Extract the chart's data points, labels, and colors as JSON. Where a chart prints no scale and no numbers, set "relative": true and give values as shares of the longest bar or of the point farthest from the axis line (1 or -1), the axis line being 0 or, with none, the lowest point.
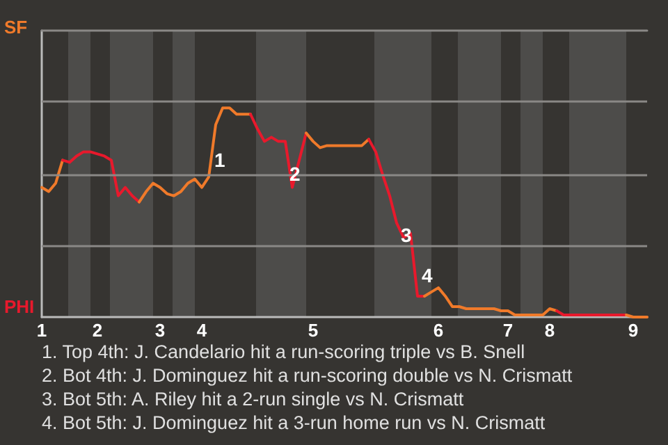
{
  "chart_data": {
    "type": "line",
    "relative": true,
    "categories": [
      "1",
      null,
      null,
      null,
      null,
      null,
      null,
      null,
      "2",
      null,
      null,
      null,
      null,
      null,
      null,
      null,
      null,
      "3",
      null,
      null,
      null,
      null,
      null,
      "4",
      null,
      null,
      null,
      null,
      null,
      null,
      null,
      null,
      null,
      null,
      null,
      null,
      null,
      null,
      null,
      "5",
      null,
      null,
      null,
      null,
      null,
      null,
      null,
      null,
      null,
      null,
      null,
      null,
      null,
      null,
      null,
      null,
      null,
      "6",
      null,
      null,
      null,
      null,
      null,
      null,
      null,
      null,
      null,
      "7",
      null,
      null,
      null,
      null,
      null,
      "8",
      null,
      null,
      null,
      null,
      null,
      null,
      null,
      null,
      null,
      null,
      null,
      "9",
      null,
      null
    ],
    "ref_lines": [
      {
        "axis": "y",
        "value": 0.34,
        "color": "#8a8886"
      },
      {
        "axis": "y",
        "value": 0.68,
        "color": "#8a8886"
      },
      {
        "axis": "y",
        "value": 1.03,
        "color": "#8a8886"
      }
    ],
    "marker": "none",
    "series": [
      {
        "color": "#f07a2a",
        "values": [
          0.62,
          0.6,
          0.64,
          0.75,
          null,
          null,
          null,
          null,
          null,
          null,
          null,
          null,
          null,
          null,
          null,
          null,
          null,
          null,
          null,
          null,
          null,
          null,
          null,
          null,
          null,
          null,
          null,
          null,
          null,
          null,
          null,
          null,
          null,
          null,
          null,
          null,
          null,
          null,
          null,
          null,
          null,
          null,
          null,
          null,
          null,
          null,
          null,
          null,
          null,
          null,
          null,
          null,
          null,
          null,
          null,
          null,
          null,
          null,
          null,
          null,
          null,
          null,
          null,
          null,
          null,
          null,
          null,
          null,
          null,
          null,
          null,
          null,
          null,
          null,
          null,
          null,
          null,
          null,
          null,
          null,
          null,
          null,
          null,
          null,
          null,
          null,
          null,
          null
        ]
      },
      {
        "color": "#e8192c",
        "values": [
          null,
          null,
          null,
          0.75,
          0.74,
          0.77,
          0.79,
          0.79,
          0.78,
          0.77,
          0.75,
          0.58,
          0.62,
          0.58,
          0.55,
          null,
          null,
          null,
          null,
          null,
          null,
          null,
          null,
          null,
          null,
          null,
          null,
          null,
          null,
          null,
          null,
          null,
          null,
          null,
          null,
          null,
          null,
          null,
          null,
          null,
          null,
          null,
          null,
          null,
          null,
          null,
          null,
          null,
          null,
          null,
          null,
          null,
          null,
          null,
          null,
          null,
          null,
          null,
          null,
          null,
          null,
          null,
          null,
          null,
          null,
          null,
          null,
          null,
          null,
          null,
          null,
          null,
          null,
          null,
          null,
          null,
          null,
          null,
          null,
          null,
          null,
          null,
          null,
          null,
          null,
          null,
          null,
          null
        ]
      },
      {
        "color": "#f07a2a",
        "values": [
          null,
          null,
          null,
          null,
          null,
          null,
          null,
          null,
          null,
          null,
          null,
          null,
          null,
          null,
          0.55,
          0.6,
          0.64,
          0.62,
          0.59,
          0.58,
          0.6,
          0.64,
          0.66,
          0.62,
          0.67,
          0.92,
          1,
          1,
          0.97,
          0.97,
          0.97,
          null,
          null,
          null,
          null,
          null,
          null,
          null,
          null,
          null,
          null,
          null,
          null,
          null,
          null,
          null,
          null,
          null,
          null,
          null,
          null,
          null,
          null,
          null,
          null,
          null,
          null,
          null,
          null,
          null,
          null,
          null,
          null,
          null,
          null,
          null,
          null,
          null,
          null,
          null,
          null,
          null,
          null,
          null,
          null,
          null,
          null,
          null,
          null,
          null,
          null,
          null,
          null,
          null,
          null,
          null,
          null,
          null
        ]
      },
      {
        "color": "#e8192c",
        "values": [
          null,
          null,
          null,
          null,
          null,
          null,
          null,
          null,
          null,
          null,
          null,
          null,
          null,
          null,
          null,
          null,
          null,
          null,
          null,
          null,
          null,
          null,
          null,
          null,
          null,
          null,
          null,
          null,
          null,
          null,
          0.97,
          0.9,
          0.84,
          0.86,
          0.84,
          0.84,
          0.62,
          0.75,
          0.88,
          null,
          null,
          null,
          null,
          null,
          null,
          null,
          null,
          null,
          null,
          null,
          null,
          null,
          null,
          null,
          null,
          null,
          null,
          null,
          null,
          null,
          null,
          null,
          null,
          null,
          null,
          null,
          null,
          null,
          null,
          null,
          null,
          null,
          null,
          null,
          null,
          null,
          null,
          null,
          null,
          null,
          null,
          null,
          null,
          null,
          null,
          null,
          null,
          null
        ]
      },
      {
        "color": "#f07a2a",
        "values": [
          null,
          null,
          null,
          null,
          null,
          null,
          null,
          null,
          null,
          null,
          null,
          null,
          null,
          null,
          null,
          null,
          null,
          null,
          null,
          null,
          null,
          null,
          null,
          null,
          null,
          null,
          null,
          null,
          null,
          null,
          null,
          null,
          null,
          null,
          null,
          null,
          null,
          null,
          0.88,
          0.84,
          0.81,
          0.82,
          0.82,
          0.82,
          0.82,
          0.82,
          0.82,
          0.85,
          null,
          null,
          null,
          null,
          null,
          null,
          null,
          null,
          null,
          null,
          null,
          null,
          null,
          null,
          null,
          null,
          null,
          null,
          null,
          null,
          null,
          null,
          null,
          null,
          null,
          null,
          null,
          null,
          null,
          null,
          null,
          null,
          null,
          null,
          null,
          null,
          null,
          null,
          null,
          null
        ]
      },
      {
        "color": "#e8192c",
        "values": [
          null,
          null,
          null,
          null,
          null,
          null,
          null,
          null,
          null,
          null,
          null,
          null,
          null,
          null,
          null,
          null,
          null,
          null,
          null,
          null,
          null,
          null,
          null,
          null,
          null,
          null,
          null,
          null,
          null,
          null,
          null,
          null,
          null,
          null,
          null,
          null,
          null,
          null,
          null,
          null,
          null,
          null,
          null,
          null,
          null,
          null,
          null,
          0.85,
          0.79,
          0.68,
          0.58,
          0.45,
          0.38,
          0.4,
          0.1,
          0.1,
          null,
          null,
          null,
          null,
          null,
          null,
          null,
          null,
          null,
          null,
          null,
          null,
          null,
          null,
          null,
          null,
          null,
          null,
          null,
          null,
          null,
          null,
          null,
          null,
          null,
          null,
          null,
          null,
          null,
          null,
          null,
          null
        ]
      },
      {
        "color": "#f07a2a",
        "values": [
          null,
          null,
          null,
          null,
          null,
          null,
          null,
          null,
          null,
          null,
          null,
          null,
          null,
          null,
          null,
          null,
          null,
          null,
          null,
          null,
          null,
          null,
          null,
          null,
          null,
          null,
          null,
          null,
          null,
          null,
          null,
          null,
          null,
          null,
          null,
          null,
          null,
          null,
          null,
          null,
          null,
          null,
          null,
          null,
          null,
          null,
          null,
          null,
          null,
          null,
          null,
          null,
          null,
          null,
          null,
          0.1,
          0.12,
          0.14,
          0.1,
          0.05,
          0.05,
          0.04,
          0.04,
          0.04,
          0.04,
          0.04,
          0.03,
          0.03,
          0.01,
          0.01,
          0.01,
          0.01,
          0.01,
          0.04,
          0.03,
          null,
          null,
          null,
          null,
          null,
          null,
          null,
          null,
          null,
          null,
          null,
          null,
          null
        ]
      },
      {
        "color": "#e8192c",
        "values": [
          null,
          null,
          null,
          null,
          null,
          null,
          null,
          null,
          null,
          null,
          null,
          null,
          null,
          null,
          null,
          null,
          null,
          null,
          null,
          null,
          null,
          null,
          null,
          null,
          null,
          null,
          null,
          null,
          null,
          null,
          null,
          null,
          null,
          null,
          null,
          null,
          null,
          null,
          null,
          null,
          null,
          null,
          null,
          null,
          null,
          null,
          null,
          null,
          null,
          null,
          null,
          null,
          null,
          null,
          null,
          null,
          null,
          null,
          null,
          null,
          null,
          null,
          null,
          null,
          null,
          null,
          null,
          null,
          null,
          null,
          null,
          null,
          null,
          null,
          0.03,
          0.01,
          0.01,
          0.01,
          0.01,
          0.01,
          0.01,
          0.01,
          0.01,
          0.01,
          0.01,
          null,
          null,
          null
        ]
      },
      {
        "color": "#f07a2a",
        "values": [
          null,
          null,
          null,
          null,
          null,
          null,
          null,
          null,
          null,
          null,
          null,
          null,
          null,
          null,
          null,
          null,
          null,
          null,
          null,
          null,
          null,
          null,
          null,
          null,
          null,
          null,
          null,
          null,
          null,
          null,
          null,
          null,
          null,
          null,
          null,
          null,
          null,
          null,
          null,
          null,
          null,
          null,
          null,
          null,
          null,
          null,
          null,
          null,
          null,
          null,
          null,
          null,
          null,
          null,
          null,
          null,
          null,
          null,
          null,
          null,
          null,
          null,
          null,
          null,
          null,
          null,
          null,
          null,
          null,
          null,
          null,
          null,
          null,
          null,
          null,
          null,
          null,
          null,
          null,
          null,
          null,
          null,
          null,
          null,
          0.01,
          0,
          0,
          0
        ]
      }
    ],
    "annotations": [
      "SF",
      "PHI",
      "1",
      "2",
      "3",
      "4",
      "1. Top 4th: J. Candelario hit a run-scoring triple vs B. Snell",
      "2. Bot 4th: J. Dominguez hit a run-scoring double vs N. Crismatt",
      "3. Bot 5th: A. Riley hit a 2-run single vs N. Crismatt",
      "4. Bot 5th: J. Dominguez hit a 3-run home run vs N. Crismatt"
    ]
  }
}
